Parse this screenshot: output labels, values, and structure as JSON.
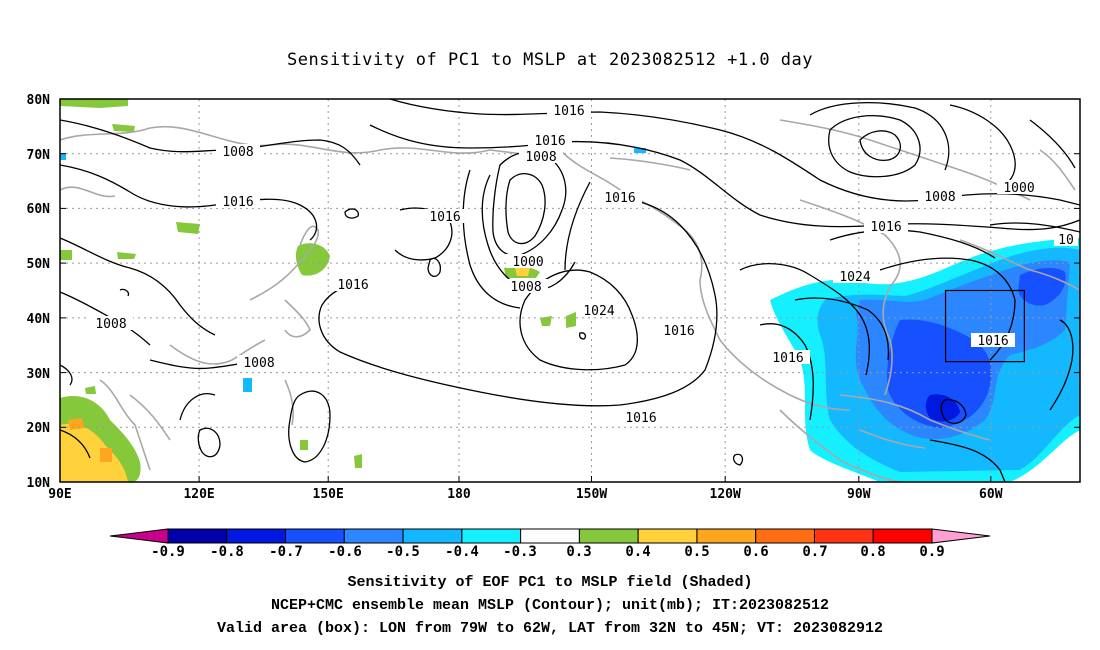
{
  "title": "Sensitivity of PC1 to MSLP at 2023082512 +1.0 day",
  "lat_labels": [
    "80N",
    "70N",
    "60N",
    "50N",
    "40N",
    "30N",
    "20N",
    "10N"
  ],
  "lon_labels": [
    "90E",
    "120E",
    "150E",
    "180",
    "150W",
    "120W",
    "90W",
    "60W"
  ],
  "contour_labels": [
    "1016",
    "1016",
    "1008",
    "1008",
    "1016",
    "1016",
    "1016",
    "1000",
    "1008",
    "1024",
    "1016",
    "1016",
    "1008",
    "1008",
    "1016",
    "1016",
    "1000",
    "1008",
    "1016",
    "1024",
    "1016",
    "10"
  ],
  "colorbar": {
    "labels": [
      "-0.9",
      "-0.8",
      "-0.7",
      "-0.6",
      "-0.5",
      "-0.4",
      "-0.3",
      "0.3",
      "0.4",
      "0.5",
      "0.6",
      "0.7",
      "0.8",
      "0.9"
    ],
    "colors": [
      "#0000a8",
      "#0018e0",
      "#1650ff",
      "#2b86ff",
      "#14b8ff",
      "#14f0ff",
      "#ffffff",
      "#86c83c",
      "#ffd23c",
      "#ffa51e",
      "#ff6e14",
      "#ff3214",
      "#ff0000"
    ],
    "left_tip_color": "#c8008c",
    "right_tip_color": "#ffa0d2"
  },
  "caption": {
    "line1": "Sensitivity of EOF PC1 to MSLP field (Shaded)",
    "line2": "NCEP+CMC ensemble mean MSLP (Contour); unit(mb); IT:2023082512",
    "line3": "Valid area (box): LON from 79W to 62W, LAT from 32N to 45N; VT: 2023082912"
  },
  "valid_box": {
    "lon_min": -79,
    "lon_max": -62,
    "lat_min": 32,
    "lat_max": 45
  },
  "map_extent": {
    "lon_min": 90,
    "lon_max": 310,
    "lat_min": 10,
    "lat_max": 80
  }
}
